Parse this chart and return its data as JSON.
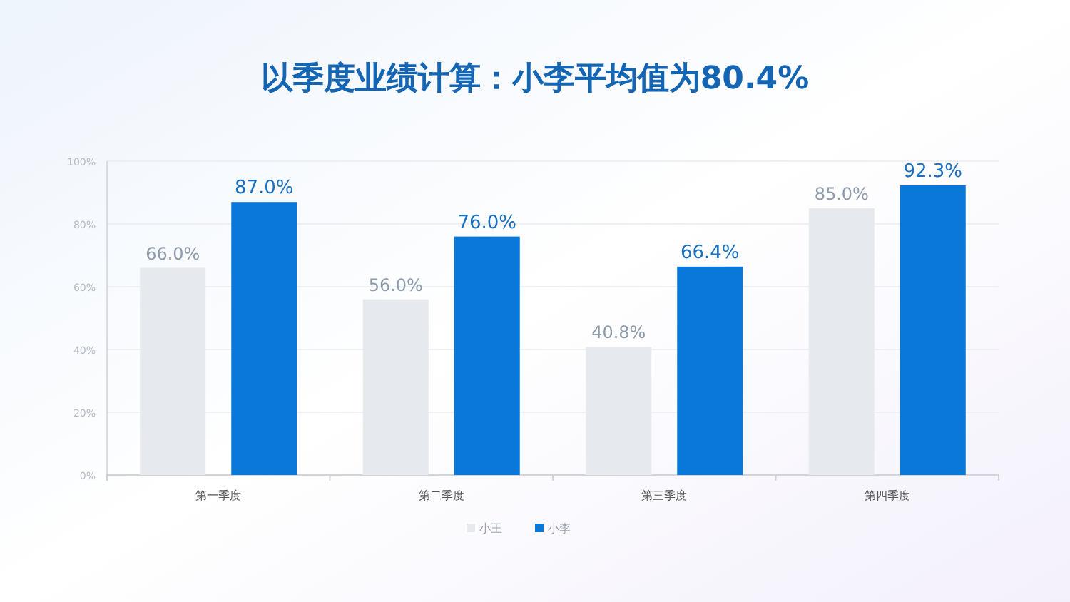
{
  "chart_data": {
    "type": "bar",
    "title": "以季度业绩计算：小李平均值为80.4%",
    "categories": [
      "第一季度",
      "第二季度",
      "第三季度",
      "第四季度"
    ],
    "series": [
      {
        "name": "小王",
        "color": "#e6eaee",
        "values": [
          66.0,
          56.0,
          40.8,
          85.0
        ],
        "value_labels": [
          "66.0%",
          "56.0%",
          "40.8%",
          "85.0%"
        ]
      },
      {
        "name": "小李",
        "color": "#0a78d8",
        "values": [
          87.0,
          76.0,
          66.4,
          92.3
        ],
        "value_labels": [
          "87.0%",
          "76.0%",
          "66.4%",
          "92.3%"
        ]
      }
    ],
    "ylim": [
      0,
      100
    ],
    "yticks": [
      {
        "value": 0,
        "label": "0%"
      },
      {
        "value": 20,
        "label": "20%"
      },
      {
        "value": 40,
        "label": "40%"
      },
      {
        "value": 60,
        "label": "60%"
      },
      {
        "value": 80,
        "label": "80%"
      },
      {
        "value": 100,
        "label": "100%"
      }
    ],
    "grid": "y",
    "legend": "bottom"
  }
}
